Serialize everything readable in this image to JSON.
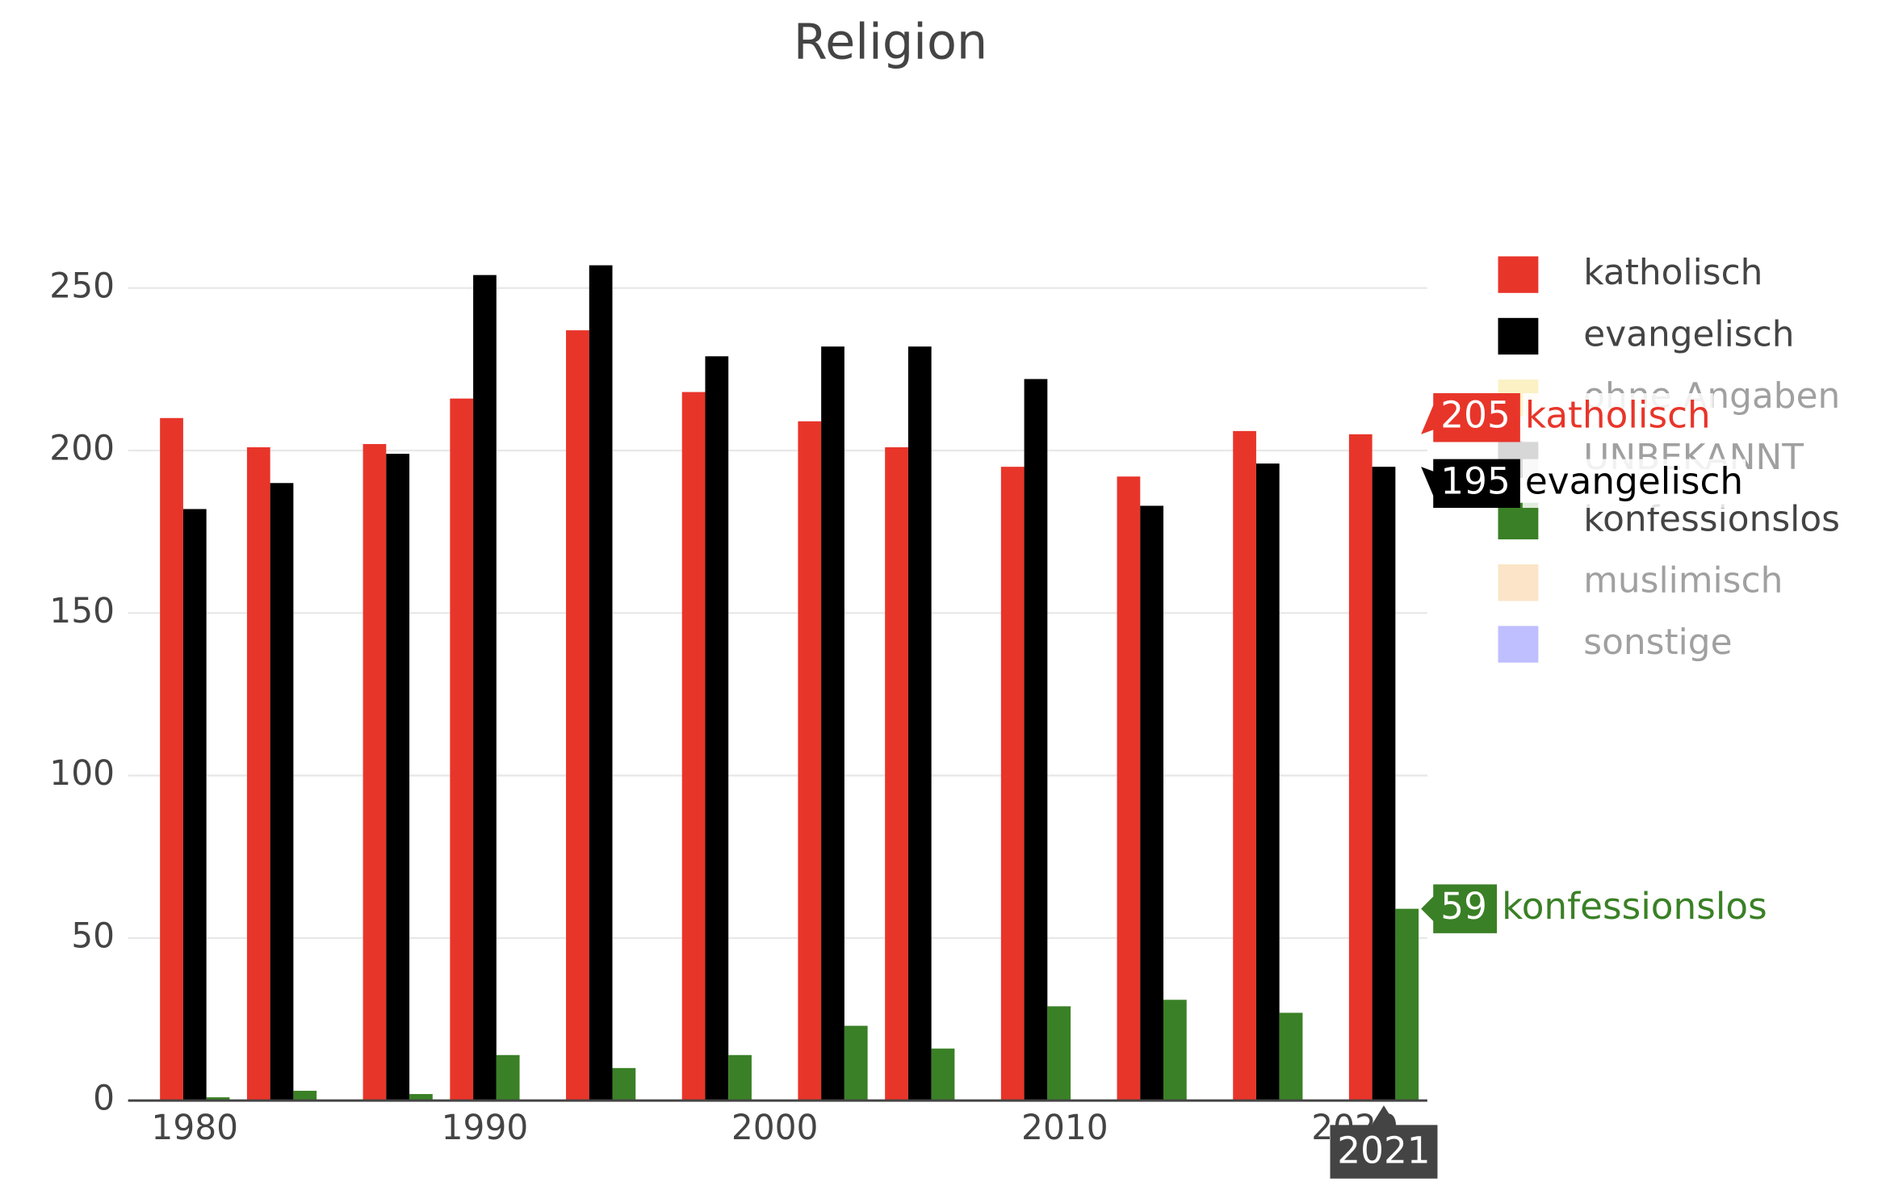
{
  "chart_data": {
    "type": "bar",
    "title": "Religion",
    "x": [
      1980,
      1983,
      1987,
      1990,
      1994,
      1998,
      2002,
      2005,
      2009,
      2013,
      2017,
      2021
    ],
    "series": [
      {
        "name": "katholisch",
        "color": "#e8352a",
        "values": [
          210,
          201,
          202,
          216,
          237,
          218,
          209,
          201,
          195,
          192,
          206,
          205
        ]
      },
      {
        "name": "evangelisch",
        "color": "#000000",
        "values": [
          182,
          190,
          199,
          254,
          257,
          229,
          232,
          232,
          222,
          183,
          196,
          195
        ]
      },
      {
        "name": "ohne Angaben",
        "color": "#f7e38c",
        "visible": false,
        "values": [
          null,
          null,
          null,
          null,
          null,
          null,
          null,
          null,
          null,
          null,
          null,
          null
        ]
      },
      {
        "name": "UNBEKANNT",
        "color": "#b0b0b0",
        "visible": false,
        "values": [
          null,
          null,
          null,
          null,
          null,
          null,
          null,
          null,
          null,
          null,
          null,
          null
        ]
      },
      {
        "name": "konfessionslos",
        "color": "#3a8026",
        "values": [
          1,
          3,
          2,
          14,
          10,
          14,
          23,
          16,
          29,
          31,
          27,
          59
        ]
      },
      {
        "name": "muslimisch",
        "color": "#f7c98f",
        "visible": false,
        "values": [
          null,
          null,
          null,
          null,
          null,
          null,
          null,
          null,
          null,
          null,
          null,
          null
        ]
      },
      {
        "name": "sonstige",
        "color": "#8080ff",
        "visible": false,
        "values": [
          null,
          null,
          null,
          null,
          null,
          null,
          null,
          null,
          null,
          null,
          null,
          null
        ]
      }
    ],
    "xlim": [
      1977.7,
      2022.5
    ],
    "xticks": [
      1980,
      1990,
      2000,
      2010,
      2020
    ],
    "ylim": [
      0,
      270
    ],
    "yticks": [
      0,
      50,
      100,
      150,
      200,
      250
    ],
    "grid": true,
    "legend": "right",
    "hover_index": 11
  }
}
